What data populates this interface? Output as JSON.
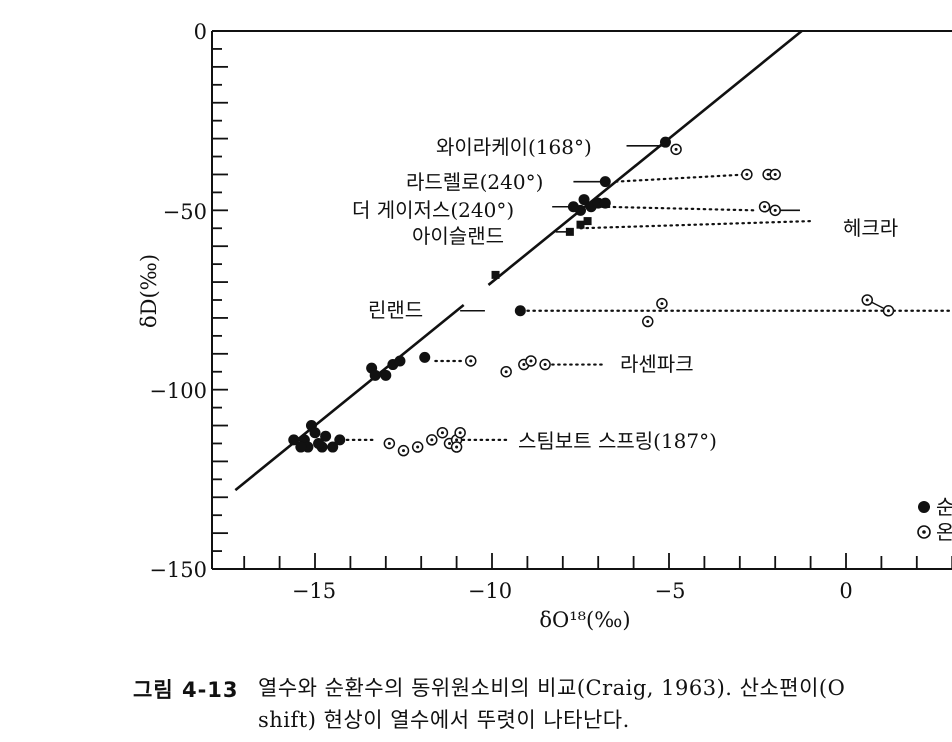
{
  "chart_data": {
    "type": "scatter",
    "xlabel": "δO¹⁸(‰)",
    "ylabel": "δD(‰)",
    "xlim": [
      -17.5,
      3
    ],
    "ylim": [
      -150,
      0
    ],
    "x_ticks": [
      -15,
      -10,
      -5,
      0
    ],
    "x_tick_labels": [
      "−15",
      "−10",
      "−5",
      "0"
    ],
    "y_ticks": [
      0,
      -50,
      -100,
      -150
    ],
    "y_tick_labels": [
      "0",
      "−50",
      "−100",
      "−150"
    ],
    "meteoric_line": {
      "x": [
        -17.25,
        -1.25
      ],
      "y": [
        -128,
        0
      ]
    },
    "series": [
      {
        "name": "순환",
        "marker": "filled-circle",
        "points": [
          [
            -5.1,
            -31
          ],
          [
            -6.8,
            -42
          ],
          [
            -7.4,
            -47
          ],
          [
            -7.2,
            -49
          ],
          [
            -7.5,
            -50
          ],
          [
            -7.0,
            -48
          ],
          [
            -6.8,
            -48
          ],
          [
            -7.7,
            -49
          ],
          [
            -9.2,
            -78
          ],
          [
            -13.4,
            -94
          ],
          [
            -13.3,
            -96
          ],
          [
            -13.0,
            -96
          ],
          [
            -12.8,
            -93
          ],
          [
            -12.6,
            -92
          ],
          [
            -11.9,
            -91
          ],
          [
            -15.1,
            -110
          ],
          [
            -15.0,
            -112
          ],
          [
            -15.3,
            -114
          ],
          [
            -15.6,
            -114
          ],
          [
            -15.2,
            -116
          ],
          [
            -14.8,
            -116
          ],
          [
            -14.5,
            -116
          ],
          [
            -14.3,
            -114
          ],
          [
            -14.7,
            -113
          ],
          [
            -15.4,
            -116
          ],
          [
            -14.9,
            -115
          ]
        ]
      },
      {
        "name": "온천",
        "marker": "circle-dot",
        "points": [
          [
            -4.8,
            -33
          ],
          [
            -2.8,
            -40
          ],
          [
            -2.2,
            -40
          ],
          [
            -2.0,
            -40
          ],
          [
            -2.3,
            -49
          ],
          [
            -2.0,
            -50
          ],
          [
            -5.2,
            -76
          ],
          [
            -5.6,
            -81
          ],
          [
            0.6,
            -75
          ],
          [
            1.2,
            -78
          ],
          [
            -10.6,
            -92
          ],
          [
            -9.6,
            -95
          ],
          [
            -9.1,
            -93
          ],
          [
            -8.9,
            -92
          ],
          [
            -8.5,
            -93
          ],
          [
            -12.9,
            -115
          ],
          [
            -12.5,
            -117
          ],
          [
            -12.1,
            -116
          ],
          [
            -11.7,
            -114
          ],
          [
            -11.4,
            -112
          ],
          [
            -11.2,
            -115
          ],
          [
            -11.0,
            -114
          ],
          [
            -10.9,
            -112
          ],
          [
            -11.0,
            -116
          ]
        ]
      }
    ],
    "squares": [
      [
        -7.5,
        -54
      ],
      [
        -7.3,
        -53
      ],
      [
        -7.8,
        -56
      ],
      [
        -9.9,
        -68
      ]
    ],
    "fields": [
      {
        "label": "와이라케이(168°)",
        "line": [
          [
            -6.2,
            -32
          ],
          [
            -5.1,
            -32
          ]
        ]
      },
      {
        "label": "라드렐로(240°)",
        "line": [
          [
            -7.7,
            -42
          ],
          [
            -6.8,
            -42
          ]
        ],
        "trend": [
          [
            -6.5,
            -42
          ],
          [
            -2.8,
            -40
          ]
        ]
      },
      {
        "label": "더 게이저스(240°)",
        "line": [
          [
            -8.3,
            -49
          ],
          [
            -7.6,
            -49
          ]
        ],
        "trend": [
          [
            -6.9,
            -49
          ],
          [
            -2.6,
            -50
          ]
        ],
        "tail": [
          [
            -1.9,
            -50
          ],
          [
            -1.3,
            -50
          ]
        ]
      },
      {
        "label": "아이슬랜드",
        "line": [
          [
            -8.2,
            -56
          ],
          [
            -7.8,
            -56
          ]
        ],
        "trend": [
          [
            -7.5,
            -55
          ],
          [
            -1.0,
            -53
          ]
        ]
      },
      {
        "label": "헤크라"
      },
      {
        "label": "린랜드",
        "line": [
          [
            -10.9,
            -78
          ],
          [
            -10.2,
            -78
          ]
        ],
        "trend": [
          [
            -9.0,
            -78
          ],
          [
            3,
            -78
          ]
        ]
      },
      {
        "label": "라센파크",
        "trend": [
          [
            -11.6,
            -92
          ],
          [
            -10.8,
            -92
          ]
        ],
        "trend2": [
          [
            -8.3,
            -93
          ],
          [
            -6.8,
            -93
          ]
        ]
      },
      {
        "label": "스팀보트 스프링(187°)",
        "trend": [
          [
            -14.1,
            -114
          ],
          [
            -13.3,
            -114
          ]
        ],
        "trend2": [
          [
            -11.0,
            -114
          ],
          [
            -9.6,
            -114
          ]
        ]
      }
    ],
    "legend": {
      "placement": "bottom-right",
      "entries": [
        "순환",
        "온천"
      ]
    }
  },
  "caption": {
    "label": "그림 4-13",
    "line1": "열수와 순환수의 동위원소비의 비교(Craig, 1963). 산소편이(O",
    "line2": "shift) 현상이 열수에서 뚜렷이 나타난다."
  }
}
